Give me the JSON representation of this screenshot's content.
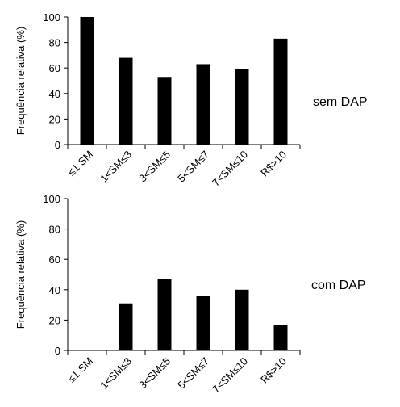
{
  "chart_data": [
    {
      "type": "bar",
      "categories": [
        "≤1 SM",
        "1<SM≤3",
        "3<SM≤5",
        "5<SM≤7",
        "7<SM≤10",
        "R$>10"
      ],
      "values": [
        100,
        68,
        53,
        63,
        59,
        83
      ],
      "ylabel": "Frequência relativa (%)",
      "annotation": "sem DAP",
      "ylim": [
        0,
        100
      ],
      "yticks": [
        0,
        20,
        40,
        60,
        80,
        100
      ],
      "bar_color": "#000000",
      "grid": false
    },
    {
      "type": "bar",
      "categories": [
        "≤1 SM",
        "1<SM≤3",
        "3<SM≤5",
        "5<SM≤7",
        "7<SM≤10",
        "R$>10"
      ],
      "values": [
        0,
        31,
        47,
        36,
        40,
        17
      ],
      "ylabel": "Frequência relativa (%)",
      "annotation": "com DAP",
      "ylim": [
        0,
        100
      ],
      "yticks": [
        0,
        20,
        40,
        60,
        80,
        100
      ],
      "bar_color": "#000000",
      "grid": false
    }
  ]
}
